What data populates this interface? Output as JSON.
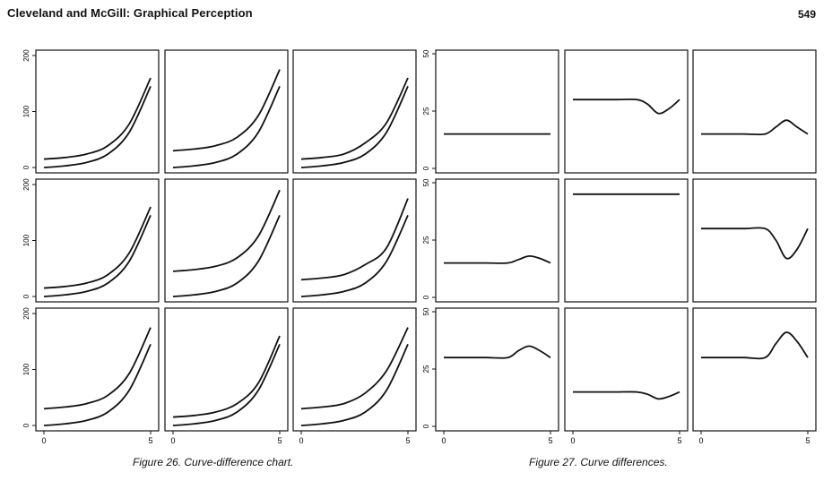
{
  "page": {
    "running_head": "Cleveland and McGill: Graphical Perception",
    "page_number": "549"
  },
  "figure26": {
    "caption": "Figure 26. Curve-difference chart.",
    "chart_data": {
      "type": "line",
      "layout": "3x3 panel grid",
      "x_ticks": [
        "0",
        "5"
      ],
      "y_ticks": [
        "0",
        "100",
        "200"
      ],
      "xlim": [
        0,
        5
      ],
      "ylim": [
        0,
        200
      ],
      "panels": [
        {
          "row": 1,
          "col": 1,
          "x": [
            0,
            1,
            2,
            3,
            4,
            5
          ],
          "series": [
            {
              "values": [
                0,
                3,
                9,
                24,
                63,
                145
              ]
            },
            {
              "values": [
                15,
                18,
                24,
                39,
                78,
                160
              ]
            }
          ]
        },
        {
          "row": 1,
          "col": 2,
          "x": [
            0,
            1,
            2,
            3,
            4,
            5
          ],
          "series": [
            {
              "values": [
                0,
                3,
                9,
                24,
                63,
                145
              ]
            },
            {
              "values": [
                30,
                33,
                39,
                54,
                93,
                175
              ]
            }
          ]
        },
        {
          "row": 1,
          "col": 3,
          "x": [
            0,
            1,
            2,
            3,
            4,
            5
          ],
          "series": [
            {
              "values": [
                0,
                3,
                9,
                24,
                63,
                145
              ]
            },
            {
              "values": [
                15,
                18,
                24,
                44,
                80,
                160
              ]
            }
          ]
        },
        {
          "row": 2,
          "col": 1,
          "x": [
            0,
            1,
            2,
            3,
            4,
            5
          ],
          "series": [
            {
              "values": [
                0,
                3,
                9,
                24,
                63,
                145
              ]
            },
            {
              "values": [
                15,
                18,
                24,
                39,
                78,
                160
              ]
            }
          ]
        },
        {
          "row": 2,
          "col": 2,
          "x": [
            0,
            1,
            2,
            3,
            4,
            5
          ],
          "series": [
            {
              "values": [
                0,
                3,
                9,
                24,
                63,
                145
              ]
            },
            {
              "values": [
                45,
                48,
                54,
                69,
                108,
                190
              ]
            }
          ]
        },
        {
          "row": 2,
          "col": 3,
          "x": [
            0,
            1,
            2,
            3,
            4,
            5
          ],
          "series": [
            {
              "values": [
                0,
                3,
                9,
                24,
                63,
                145
              ]
            },
            {
              "values": [
                30,
                33,
                39,
                57,
                87,
                175
              ]
            }
          ]
        },
        {
          "row": 3,
          "col": 1,
          "x": [
            0,
            1,
            2,
            3,
            4,
            5
          ],
          "series": [
            {
              "values": [
                0,
                3,
                9,
                24,
                63,
                145
              ]
            },
            {
              "values": [
                30,
                33,
                39,
                54,
                93,
                175
              ]
            }
          ]
        },
        {
          "row": 3,
          "col": 2,
          "x": [
            0,
            1,
            2,
            3,
            4,
            5
          ],
          "series": [
            {
              "values": [
                0,
                3,
                9,
                24,
                63,
                145
              ]
            },
            {
              "values": [
                15,
                18,
                24,
                39,
                76,
                160
              ]
            }
          ]
        },
        {
          "row": 3,
          "col": 3,
          "x": [
            0,
            1,
            2,
            3,
            4,
            5
          ],
          "series": [
            {
              "values": [
                0,
                3,
                9,
                24,
                63,
                145
              ]
            },
            {
              "values": [
                30,
                33,
                39,
                58,
                98,
                175
              ]
            }
          ]
        }
      ]
    }
  },
  "figure27": {
    "caption": "Figure 27. Curve differences.",
    "chart_data": {
      "type": "line",
      "layout": "3x3 panel grid",
      "x_ticks": [
        "0",
        "5"
      ],
      "y_ticks": [
        "0",
        "25",
        "50"
      ],
      "xlim": [
        0,
        5
      ],
      "ylim": [
        0,
        50
      ],
      "panels": [
        {
          "row": 1,
          "col": 1,
          "x": [
            0,
            1,
            2,
            3,
            3.5,
            4,
            4.5,
            5
          ],
          "values": [
            15,
            15,
            15,
            15,
            15,
            15,
            15,
            15
          ]
        },
        {
          "row": 1,
          "col": 2,
          "x": [
            0,
            1,
            2,
            3,
            3.5,
            4,
            4.5,
            5
          ],
          "values": [
            30,
            30,
            30,
            30,
            28,
            24,
            26,
            30
          ]
        },
        {
          "row": 1,
          "col": 3,
          "x": [
            0,
            1,
            2,
            3,
            3.5,
            4,
            4.5,
            5
          ],
          "values": [
            15,
            15,
            15,
            15,
            18,
            21,
            18,
            15
          ]
        },
        {
          "row": 2,
          "col": 1,
          "x": [
            0,
            1,
            2,
            3,
            3.5,
            4,
            4.5,
            5
          ],
          "values": [
            15,
            15,
            15,
            15,
            16.5,
            18,
            17,
            15
          ]
        },
        {
          "row": 2,
          "col": 2,
          "x": [
            0,
            1,
            2,
            3,
            3.5,
            4,
            4.5,
            5
          ],
          "values": [
            45,
            45,
            45,
            45,
            45,
            45,
            45,
            45
          ]
        },
        {
          "row": 2,
          "col": 3,
          "x": [
            0,
            1,
            2,
            3,
            3.5,
            4,
            4.5,
            5
          ],
          "values": [
            30,
            30,
            30,
            30,
            25,
            17,
            21,
            30
          ]
        },
        {
          "row": 3,
          "col": 1,
          "x": [
            0,
            1,
            2,
            3,
            3.5,
            4,
            4.5,
            5
          ],
          "values": [
            30,
            30,
            30,
            30,
            33,
            35,
            33,
            30
          ]
        },
        {
          "row": 3,
          "col": 2,
          "x": [
            0,
            1,
            2,
            3,
            3.5,
            4,
            4.5,
            5
          ],
          "values": [
            15,
            15,
            15,
            15,
            14,
            12,
            13,
            15
          ]
        },
        {
          "row": 3,
          "col": 3,
          "x": [
            0,
            1,
            2,
            3,
            3.5,
            4,
            4.5,
            5
          ],
          "values": [
            30,
            30,
            30,
            30,
            36,
            41,
            37,
            30
          ]
        }
      ]
    }
  }
}
